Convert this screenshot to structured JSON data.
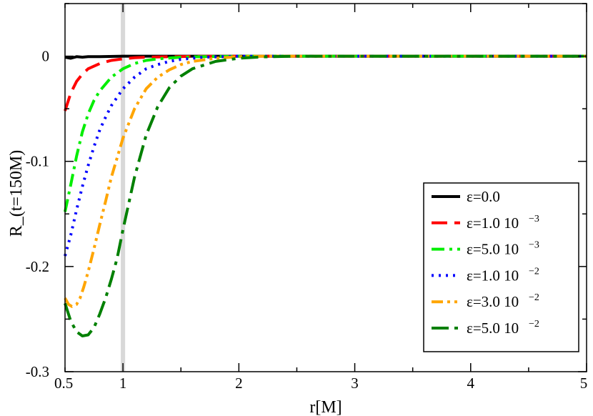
{
  "chart_data": {
    "type": "line",
    "xlabel": "r[M]",
    "ylabel": "R_(t=150M)",
    "xlim": [
      0.5,
      5
    ],
    "ylim": [
      -0.3,
      0.05
    ],
    "xticks": [
      {
        "value": 0.5,
        "label": "0.5"
      },
      {
        "value": 1,
        "label": "1"
      },
      {
        "value": 2,
        "label": "2"
      },
      {
        "value": 3,
        "label": "3"
      },
      {
        "value": 4,
        "label": "4"
      },
      {
        "value": 5,
        "label": "5"
      }
    ],
    "yticks": [
      {
        "value": 0,
        "label": "0"
      },
      {
        "value": -0.1,
        "label": "-0.1"
      },
      {
        "value": -0.2,
        "label": "-0.2"
      },
      {
        "value": -0.3,
        "label": "-0.3"
      }
    ],
    "vertical_marker": {
      "x": 1.0,
      "color": "#d8d8d8"
    },
    "legend": {
      "position": "bottom-right"
    },
    "series": [
      {
        "name": "ε=0.0",
        "legend_base": "ε=0.0",
        "legend_exp": "",
        "color": "#000000",
        "dash": "solid",
        "x": [
          0.5,
          0.55,
          0.6,
          0.65,
          0.7,
          0.8,
          1.0,
          1.5,
          2.0,
          3.0,
          4.0,
          5.0
        ],
        "y": [
          -0.001,
          -0.002,
          -0.0005,
          -0.001,
          -0.0005,
          -0.0005,
          0,
          0,
          0,
          0,
          0,
          0
        ]
      },
      {
        "name": "ε=1.0 10−3",
        "legend_base": "ε=1.0 10",
        "legend_exp": "−3",
        "color": "#ff0000",
        "dash": "long-dash",
        "x": [
          0.5,
          0.55,
          0.6,
          0.65,
          0.7,
          0.8,
          0.9,
          1.0,
          1.1,
          1.2,
          1.4,
          1.6,
          2.0,
          3.0,
          4.0,
          5.0
        ],
        "y": [
          -0.052,
          -0.035,
          -0.024,
          -0.017,
          -0.012,
          -0.007,
          -0.004,
          -0.0025,
          -0.0015,
          -0.001,
          -0.0005,
          -0.0002,
          0,
          0,
          0,
          0
        ]
      },
      {
        "name": "ε=5.0 10−3",
        "legend_base": "ε=5.0 10",
        "legend_exp": "−3",
        "color": "#00ee00",
        "dash": "dash-dot",
        "x": [
          0.5,
          0.55,
          0.6,
          0.65,
          0.7,
          0.75,
          0.8,
          0.9,
          1.0,
          1.1,
          1.2,
          1.3,
          1.5,
          1.7,
          2.0,
          3.0,
          4.0,
          5.0
        ],
        "y": [
          -0.148,
          -0.122,
          -0.095,
          -0.072,
          -0.055,
          -0.042,
          -0.033,
          -0.02,
          -0.012,
          -0.007,
          -0.004,
          -0.0025,
          -0.001,
          -0.0004,
          0,
          0,
          0,
          0
        ]
      },
      {
        "name": "ε=1.0 10−2",
        "legend_base": "ε=1.0 10",
        "legend_exp": "−2",
        "color": "#0000ff",
        "dash": "dotted",
        "x": [
          0.5,
          0.55,
          0.6,
          0.65,
          0.7,
          0.75,
          0.8,
          0.85,
          0.9,
          1.0,
          1.1,
          1.2,
          1.3,
          1.4,
          1.5,
          1.7,
          2.0,
          3.0,
          4.0,
          5.0
        ],
        "y": [
          -0.19,
          -0.17,
          -0.146,
          -0.124,
          -0.104,
          -0.086,
          -0.07,
          -0.058,
          -0.047,
          -0.031,
          -0.02,
          -0.012,
          -0.008,
          -0.005,
          -0.003,
          -0.001,
          0,
          0,
          0,
          0
        ]
      },
      {
        "name": "ε=3.0 10−2",
        "legend_base": "ε=3.0 10",
        "legend_exp": "−2",
        "color": "#ffa500",
        "dash": "dash-dot-dot",
        "x": [
          0.5,
          0.53,
          0.56,
          0.6,
          0.63,
          0.66,
          0.7,
          0.75,
          0.8,
          0.85,
          0.9,
          1.0,
          1.1,
          1.2,
          1.3,
          1.4,
          1.5,
          1.6,
          1.8,
          2.0,
          2.2,
          3.0,
          4.0,
          5.0
        ],
        "y": [
          -0.23,
          -0.236,
          -0.238,
          -0.236,
          -0.23,
          -0.22,
          -0.205,
          -0.183,
          -0.16,
          -0.138,
          -0.115,
          -0.078,
          -0.05,
          -0.031,
          -0.02,
          -0.013,
          -0.008,
          -0.005,
          -0.002,
          -0.0005,
          0,
          0,
          0,
          0
        ]
      },
      {
        "name": "ε=5.0 10−2",
        "legend_base": "ε=5.0 10",
        "legend_exp": "−2",
        "color": "#008000",
        "dash": "long-dash-dot",
        "x": [
          0.5,
          0.55,
          0.6,
          0.65,
          0.7,
          0.75,
          0.8,
          0.85,
          0.9,
          0.95,
          1.0,
          1.05,
          1.1,
          1.2,
          1.3,
          1.4,
          1.5,
          1.6,
          1.8,
          2.0,
          2.2,
          2.5,
          3.0,
          4.0,
          5.0
        ],
        "y": [
          -0.235,
          -0.252,
          -0.262,
          -0.266,
          -0.265,
          -0.258,
          -0.245,
          -0.23,
          -0.212,
          -0.192,
          -0.165,
          -0.14,
          -0.115,
          -0.075,
          -0.048,
          -0.03,
          -0.019,
          -0.012,
          -0.005,
          -0.002,
          -0.0007,
          0,
          0,
          0,
          0
        ]
      }
    ]
  }
}
